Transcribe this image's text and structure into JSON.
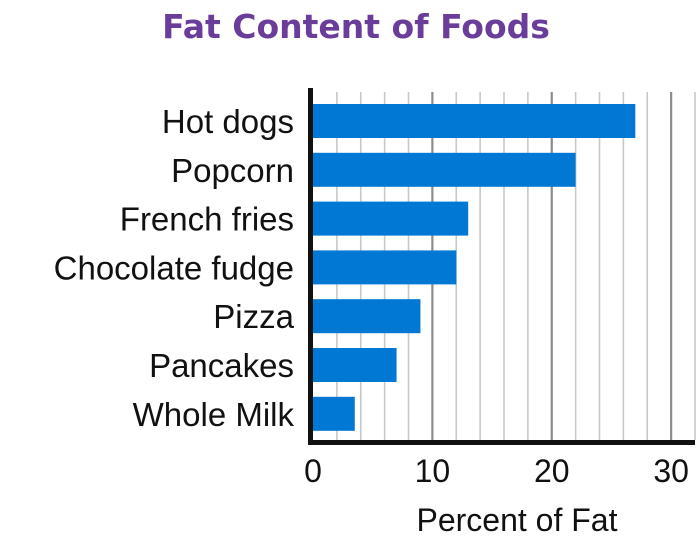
{
  "chart_data": {
    "type": "bar",
    "orientation": "horizontal",
    "title": "Fat Content of Foods",
    "xlabel": "Percent of Fat",
    "ylabel": "",
    "categories": [
      "Hot dogs",
      "Popcorn",
      "French fries",
      "Chocolate fudge",
      "Pizza",
      "Pancakes",
      "Whole Milk"
    ],
    "values": [
      27,
      22,
      13,
      12,
      9,
      7,
      3.5
    ],
    "xlim": [
      0,
      32
    ],
    "xticks": [
      0,
      10,
      20,
      30
    ],
    "xtick_labels": [
      "0",
      "10",
      "20",
      "30"
    ],
    "grid": true,
    "legend": "none",
    "colors": {
      "bar": "#0078d4",
      "title": "#6a3d9a",
      "axis": "#111111",
      "grid_minor": "#c8c8c8",
      "grid_major": "#8c8c8c"
    }
  }
}
